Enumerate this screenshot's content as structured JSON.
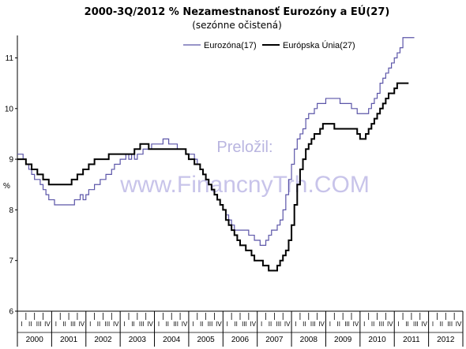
{
  "chart_data": {
    "type": "line",
    "title": "2000-3Q/2012 % Nezamestnanosť Eurozóny a EÚ(27)",
    "subtitle": "(sezónne očistená)",
    "ylabel": "%",
    "ylim": [
      6,
      11.5
    ],
    "yticks": [
      6,
      7,
      8,
      9,
      10,
      11
    ],
    "quarter_labels": [
      "I",
      "II",
      "III",
      "IV"
    ],
    "years": [
      "2000",
      "2001",
      "2002",
      "2003",
      "2004",
      "2005",
      "2006",
      "2007",
      "2008",
      "2009",
      "2010",
      "2011",
      "2012"
    ],
    "legend_position": "top",
    "grid": false,
    "watermark": [
      "Preložil:",
      "www.FinancnyTrh.COM"
    ],
    "series": [
      {
        "name": "Eurozóna(17)",
        "color": "#5b55a8",
        "values": [
          9.1,
          9.1,
          9.0,
          8.9,
          8.8,
          8.7,
          8.6,
          8.6,
          8.5,
          8.4,
          8.3,
          8.2,
          8.2,
          8.1,
          8.1,
          8.1,
          8.1,
          8.1,
          8.1,
          8.1,
          8.2,
          8.2,
          8.3,
          8.2,
          8.3,
          8.4,
          8.4,
          8.5,
          8.5,
          8.6,
          8.6,
          8.7,
          8.7,
          8.8,
          8.9,
          8.9,
          9.0,
          9.0,
          9.1,
          9.0,
          9.1,
          9.0,
          9.1,
          9.1,
          9.2,
          9.2,
          9.2,
          9.3,
          9.3,
          9.3,
          9.3,
          9.4,
          9.4,
          9.3,
          9.3,
          9.3,
          9.2,
          9.2,
          9.2,
          9.1,
          9.1,
          9.1,
          9.0,
          8.9,
          8.8,
          8.7,
          8.6,
          8.5,
          8.4,
          8.3,
          8.2,
          8.1,
          8.0,
          7.9,
          7.8,
          7.7,
          7.6,
          7.6,
          7.6,
          7.6,
          7.6,
          7.5,
          7.5,
          7.4,
          7.4,
          7.3,
          7.3,
          7.4,
          7.5,
          7.6,
          7.6,
          7.7,
          7.8,
          8.0,
          8.3,
          8.6,
          8.9,
          9.2,
          9.4,
          9.5,
          9.6,
          9.8,
          9.9,
          9.9,
          10.0,
          10.1,
          10.1,
          10.1,
          10.2,
          10.2,
          10.2,
          10.2,
          10.2,
          10.1,
          10.1,
          10.1,
          10.1,
          10.0,
          10.0,
          9.9,
          9.9,
          9.9,
          9.9,
          10.0,
          10.1,
          10.2,
          10.3,
          10.5,
          10.6,
          10.7,
          10.8,
          10.9,
          11.0,
          11.1,
          11.2,
          11.4,
          11.4,
          11.4,
          11.4
        ]
      },
      {
        "name": "Európska Únia(27)",
        "color": "#000000",
        "values": [
          9.0,
          9.0,
          9.0,
          8.9,
          8.9,
          8.8,
          8.8,
          8.7,
          8.7,
          8.6,
          8.6,
          8.5,
          8.5,
          8.5,
          8.5,
          8.5,
          8.5,
          8.5,
          8.5,
          8.6,
          8.6,
          8.7,
          8.7,
          8.8,
          8.8,
          8.9,
          8.9,
          9.0,
          9.0,
          9.0,
          9.0,
          9.0,
          9.1,
          9.1,
          9.1,
          9.1,
          9.1,
          9.1,
          9.1,
          9.1,
          9.1,
          9.2,
          9.2,
          9.3,
          9.3,
          9.3,
          9.2,
          9.2,
          9.2,
          9.2,
          9.2,
          9.2,
          9.2,
          9.2,
          9.2,
          9.2,
          9.2,
          9.2,
          9.2,
          9.1,
          9.0,
          9.0,
          8.9,
          8.9,
          8.8,
          8.7,
          8.6,
          8.5,
          8.4,
          8.3,
          8.2,
          8.1,
          8.0,
          7.8,
          7.7,
          7.6,
          7.5,
          7.4,
          7.3,
          7.3,
          7.2,
          7.2,
          7.1,
          7.0,
          7.0,
          7.0,
          6.9,
          6.9,
          6.8,
          6.8,
          6.8,
          6.9,
          7.0,
          7.1,
          7.2,
          7.4,
          7.7,
          8.1,
          8.5,
          8.8,
          9.0,
          9.2,
          9.3,
          9.4,
          9.5,
          9.5,
          9.6,
          9.7,
          9.7,
          9.7,
          9.7,
          9.6,
          9.6,
          9.6,
          9.6,
          9.6,
          9.6,
          9.6,
          9.6,
          9.5,
          9.4,
          9.4,
          9.5,
          9.6,
          9.7,
          9.8,
          9.9,
          10.0,
          10.1,
          10.2,
          10.3,
          10.3,
          10.4,
          10.5,
          10.5,
          10.5,
          10.5
        ]
      }
    ]
  }
}
